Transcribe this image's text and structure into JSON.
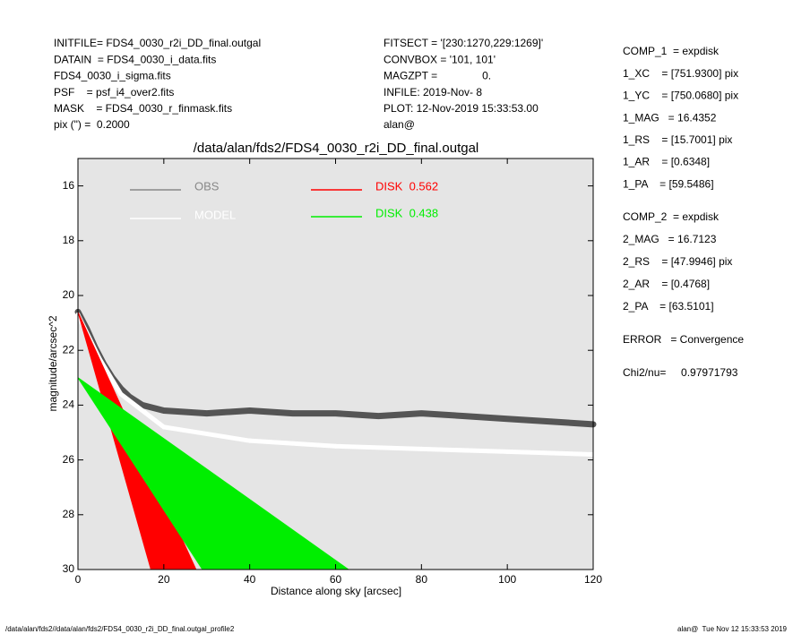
{
  "header": {
    "left": [
      "INITFILE= FDS4_0030_r2i_DD_final.outgal",
      "DATAIN  = FDS4_0030_i_data.fits",
      "FDS4_0030_i_sigma.fits",
      "PSF    = psf_i4_over2.fits",
      "MASK    = FDS4_0030_r_finmask.fits",
      "pix (\") =  0.2000"
    ],
    "middle": [
      "FITSECT = '[230:1270,229:1269]'",
      "CONVBOX = '101, 101'",
      "MAGZPT =               0.",
      "INFILE: 2019-Nov- 8",
      "PLOT: 12-Nov-2019 15:33:53.00",
      "alan@"
    ]
  },
  "parameters": {
    "comp1": [
      "COMP_1  = expdisk",
      "1_XC    = [751.9300] pix",
      "1_YC    = [750.0680] pix",
      "1_MAG   = 16.4352",
      "1_RS    = [15.7001] pix",
      "1_AR    = [0.6348]",
      "1_PA    = [59.5486]"
    ],
    "comp2": [
      "COMP_2  = expdisk",
      "2_MAG   = 16.7123",
      "2_RS    = [47.9946] pix",
      "2_AR    = [0.4768]",
      "2_PA    = [63.5101]"
    ],
    "error": "ERROR   = Convergence",
    "chi2": "Chi2/nu=     0.97971793"
  },
  "footer": {
    "left": "/data/alan/fds2//data/alan/fds2/FDS4_0030_r2i_DD_final.outgal_profile2",
    "right": "alan@  Tue Nov 12 15:33:53 2019"
  },
  "chart_data": {
    "type": "scatter",
    "title": "/data/alan/fds2/FDS4_0030_r2i_DD_final.outgal",
    "x_label": "Distance along sky [arcsec]",
    "y_label": "magnitude/arcsec^2",
    "xlim": [
      0,
      120
    ],
    "xticks": [
      0,
      20,
      40,
      60,
      80,
      100,
      120
    ],
    "ylim": [
      30,
      15
    ],
    "yticks": [
      16,
      18,
      20,
      22,
      24,
      26,
      28,
      30
    ],
    "series": [
      {
        "name": "OBS",
        "color": "#555555",
        "type": "scatter",
        "x": [
          0,
          2,
          4,
          6,
          8,
          10,
          12,
          15,
          20,
          30,
          40,
          50,
          60,
          70,
          80,
          90,
          100,
          110,
          120
        ],
        "values": [
          20.6,
          21.2,
          21.9,
          22.5,
          23.0,
          23.4,
          23.7,
          24.0,
          24.2,
          24.3,
          24.2,
          24.3,
          24.3,
          24.4,
          24.3,
          24.4,
          24.5,
          24.6,
          24.7
        ]
      },
      {
        "name": "MODEL",
        "color": "#ffffff",
        "type": "scatter",
        "x": [
          0,
          5,
          10,
          20,
          40,
          60,
          80,
          100,
          120
        ],
        "values": [
          20.7,
          22.3,
          23.6,
          24.8,
          25.3,
          25.5,
          25.6,
          25.7,
          25.8
        ]
      },
      {
        "name": "DISK  0.562",
        "color": "#ff0000",
        "type": "area",
        "x": [
          0,
          17,
          27.5
        ],
        "values": [
          20.6,
          30,
          30
        ]
      },
      {
        "name": "DISK  0.438",
        "color": "#00ee00",
        "type": "area",
        "x": [
          0,
          29,
          63
        ],
        "values": [
          23,
          30,
          30
        ]
      }
    ]
  }
}
